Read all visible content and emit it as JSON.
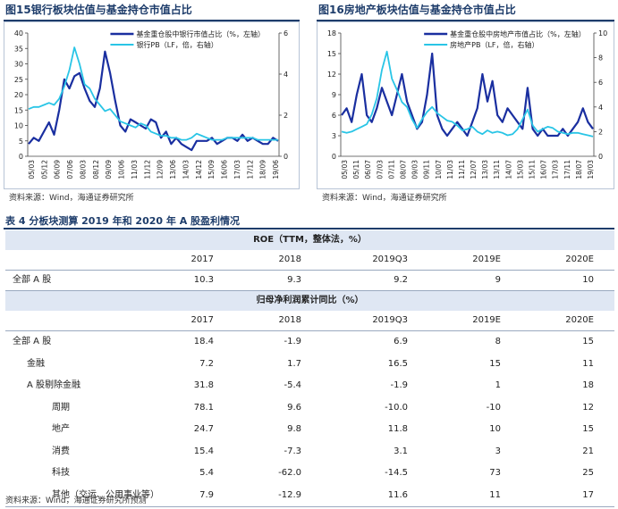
{
  "fig15": {
    "title": "图15银行板块估值与基金持仓市值占比",
    "source": "资料来源：Wind，海通证券研究所"
  },
  "fig16": {
    "title": "图16房地产板块估值与基金持仓市值占比",
    "source": "资料来源：Wind，海通证券研究所"
  },
  "chart_data": [
    {
      "type": "line",
      "title": "图15银行板块估值与基金持仓市值占比",
      "x_ticks": [
        "05/03",
        "05/12",
        "06/09",
        "07/06",
        "08/03",
        "08/12",
        "09/09",
        "10/06",
        "11/03",
        "11/12",
        "12/09",
        "13/06",
        "14/03",
        "14/12",
        "15/09",
        "16/06",
        "17/03",
        "17/12",
        "18/09",
        "19/06"
      ],
      "left_ylim": [
        0,
        40
      ],
      "left_ticks": [
        "0",
        "5",
        "10",
        "15",
        "20",
        "25",
        "30",
        "35",
        "40"
      ],
      "right_ylim": [
        0,
        6
      ],
      "right_ticks": [
        "0",
        "2",
        "4",
        "6"
      ],
      "legend_position": "top-right",
      "series": [
        {
          "name": "基金重仓股中银行市值占比（%，左轴）",
          "axis": "left",
          "color": "#1a2fa0",
          "values": [
            4,
            6,
            5,
            8,
            11,
            7,
            15,
            25,
            22,
            26,
            27,
            22,
            18,
            16,
            22,
            34,
            27,
            18,
            10,
            8,
            12,
            11,
            10,
            9,
            12,
            11,
            6,
            8,
            4,
            6,
            4,
            3,
            2,
            5,
            5,
            5,
            6,
            4,
            5,
            6,
            6,
            5,
            7,
            5,
            6,
            5,
            4,
            4,
            6,
            5
          ]
        },
        {
          "name": "银行PB（LF，倍，右轴）",
          "axis": "right",
          "color": "#29c5e6",
          "values": [
            2.3,
            2.4,
            2.4,
            2.5,
            2.6,
            2.5,
            2.8,
            3.4,
            4.2,
            5.3,
            4.5,
            3.5,
            3.3,
            2.8,
            2.5,
            2.2,
            2.3,
            2.0,
            1.7,
            1.6,
            1.5,
            1.4,
            1.6,
            1.5,
            1.2,
            1.1,
            1.0,
            1.0,
            0.9,
            0.9,
            0.8,
            0.8,
            0.9,
            1.1,
            1.0,
            0.9,
            0.8,
            0.8,
            0.8,
            0.9,
            0.9,
            0.9,
            0.9,
            0.9,
            0.9,
            0.8,
            0.8,
            0.8,
            0.8,
            0.8
          ]
        }
      ]
    },
    {
      "type": "line",
      "title": "图16房地产板块估值与基金持仓市值占比",
      "x_ticks": [
        "05/03",
        "05/11",
        "06/07",
        "07/03",
        "07/11",
        "08/07",
        "09/03",
        "09/11",
        "10/07",
        "11/03",
        "11/11",
        "12/07",
        "13/03",
        "13/11",
        "14/07",
        "15/03",
        "15/11",
        "16/07",
        "17/03",
        "17/11",
        "18/07",
        "19/03"
      ],
      "left_ylim": [
        0,
        18
      ],
      "left_ticks": [
        "0",
        "3",
        "6",
        "9",
        "12",
        "15",
        "18"
      ],
      "right_ylim": [
        0,
        10
      ],
      "right_ticks": [
        "0",
        "2",
        "4",
        "6",
        "8",
        "10"
      ],
      "legend_position": "top-right",
      "series": [
        {
          "name": "基金重仓股中房地产市值占比（%，左轴）",
          "axis": "left",
          "color": "#1a2fa0",
          "values": [
            6,
            7,
            5,
            9,
            12,
            6,
            5,
            7,
            10,
            8,
            6,
            9,
            12,
            8,
            6,
            4,
            5,
            9,
            15,
            6,
            4,
            3,
            4,
            5,
            4,
            3,
            5,
            7,
            12,
            8,
            11,
            6,
            5,
            7,
            6,
            5,
            4,
            10,
            4,
            3,
            4,
            3,
            3,
            3,
            4,
            3,
            4,
            5,
            7,
            5,
            4
          ]
        },
        {
          "name": "房地产PB（LF，倍，右轴）",
          "axis": "right",
          "color": "#29c5e6",
          "values": [
            2.0,
            1.9,
            2.0,
            2.2,
            2.4,
            2.6,
            3.4,
            4.7,
            7.0,
            8.5,
            6.3,
            5.4,
            4.4,
            4.0,
            3.0,
            2.3,
            3.0,
            3.6,
            4.0,
            3.5,
            3.2,
            2.9,
            2.8,
            2.5,
            2.1,
            2.2,
            2.4,
            2.0,
            1.8,
            2.1,
            1.9,
            2.0,
            1.9,
            1.7,
            1.8,
            2.2,
            3.0,
            3.8,
            2.5,
            2.0,
            2.2,
            2.4,
            2.3,
            2.0,
            1.9,
            1.8,
            1.9,
            1.9,
            1.8,
            1.7,
            1.6
          ]
        }
      ]
    }
  ],
  "table": {
    "title": "表 4 分板块测算 2019 年和 2020 年 A 股盈利情况",
    "roe_header": "ROE（TTM，整体法，%）",
    "growth_header": "归母净利润累计同比（%）",
    "columns": [
      "2017",
      "2018",
      "2019Q3",
      "2019E",
      "2020E"
    ],
    "roe_row": {
      "label": "全部 A 股",
      "values": [
        "10.3",
        "9.3",
        "9.2",
        "9",
        "10"
      ]
    },
    "growth_rows": [
      {
        "label": "全部 A 股",
        "values": [
          "18.4",
          "-1.9",
          "6.9",
          "8",
          "15"
        ]
      },
      {
        "label": "金融",
        "values": [
          "7.2",
          "1.7",
          "16.5",
          "15",
          "11"
        ]
      },
      {
        "label": "A 股剔除金融",
        "values": [
          "31.8",
          "-5.4",
          "-1.9",
          "1",
          "18"
        ]
      },
      {
        "label": "周期",
        "values": [
          "78.1",
          "9.6",
          "-10.0",
          "-10",
          "12"
        ]
      },
      {
        "label": "地产",
        "values": [
          "24.7",
          "9.8",
          "11.8",
          "10",
          "15"
        ]
      },
      {
        "label": "消费",
        "values": [
          "15.4",
          "-7.3",
          "3.1",
          "3",
          "21"
        ]
      },
      {
        "label": "科技",
        "values": [
          "5.4",
          "-62.0",
          "-14.5",
          "73",
          "25"
        ]
      },
      {
        "label": "其他（交运、公用事业等）",
        "values": [
          "7.9",
          "-12.9",
          "11.6",
          "11",
          "17"
        ]
      }
    ],
    "source": "资料来源：Wind，海通证券研究所预测"
  }
}
